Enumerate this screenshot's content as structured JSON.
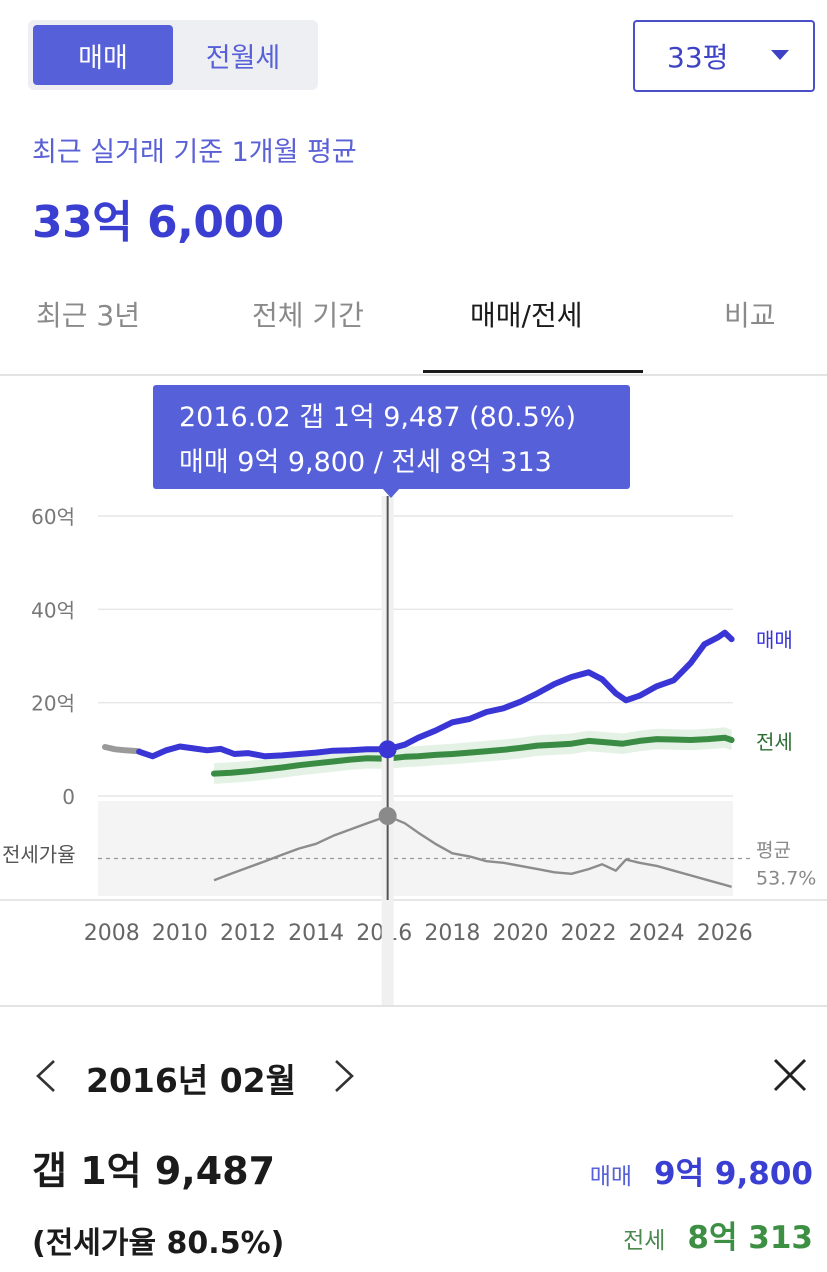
{
  "segment": {
    "sale_label": "매매",
    "rent_label": "전월세",
    "active": "sale"
  },
  "size_select": {
    "value": "33평"
  },
  "summary": {
    "subtitle": "최근 실거래 기준 1개월 평균",
    "price": "33억 6,000"
  },
  "tabs": [
    {
      "label": "최근 3년",
      "active": false
    },
    {
      "label": "전체 기간",
      "active": false
    },
    {
      "label": "매매/전세",
      "active": true
    },
    {
      "label": "비교",
      "active": false
    }
  ],
  "tooltip": {
    "line1": "2016.02  갭 1억 9,487 (80.5%)",
    "line2": "매매 9억 9,800 / 전세 8억 313"
  },
  "detail": {
    "date": "2016년 02월",
    "gap": "갭 1억 9,487",
    "ratio": "(전세가율 80.5%)",
    "sale_label": "매매",
    "sale_value": "9억 9,800",
    "jeonse_label": "전세",
    "jeonse_value": "8억 313"
  },
  "colors": {
    "sale": "#3a36d6",
    "jeonse": "#3a8c44",
    "ratio": "#8c8c8c",
    "accent": "#5660d9"
  },
  "icons": {
    "prev": "chevron-left-icon",
    "next": "chevron-right-icon",
    "close": "close-icon",
    "dropdown": "caret-down-icon"
  },
  "chart_data": {
    "type": "line",
    "x_ticks": [
      2008,
      2010,
      2012,
      2014,
      2016,
      2018,
      2020,
      2022,
      2024,
      2026
    ],
    "x_range": [
      2007.8,
      2026.3
    ],
    "y_ticks": [
      {
        "value": 0,
        "label": "0"
      },
      {
        "value": 20,
        "label": "20억"
      },
      {
        "value": 40,
        "label": "40억"
      },
      {
        "value": 60,
        "label": "60억"
      }
    ],
    "ylim": [
      0,
      60
    ],
    "grid": true,
    "highlight_year": 2016.1,
    "series": [
      {
        "name": "매매",
        "points": [
          [
            2008.8,
            9.5
          ],
          [
            2009.2,
            8.5
          ],
          [
            2009.6,
            9.8
          ],
          [
            2010.0,
            10.6
          ],
          [
            2010.4,
            10.2
          ],
          [
            2010.8,
            9.8
          ],
          [
            2011.2,
            10.1
          ],
          [
            2011.6,
            9.0
          ],
          [
            2012.0,
            9.2
          ],
          [
            2012.5,
            8.5
          ],
          [
            2013.0,
            8.7
          ],
          [
            2013.5,
            9.0
          ],
          [
            2014.0,
            9.3
          ],
          [
            2014.5,
            9.7
          ],
          [
            2015.0,
            9.8
          ],
          [
            2015.5,
            10.0
          ],
          [
            2016.1,
            10.0
          ],
          [
            2016.6,
            11.0
          ],
          [
            2017.0,
            12.5
          ],
          [
            2017.5,
            14.0
          ],
          [
            2018.0,
            15.8
          ],
          [
            2018.5,
            16.5
          ],
          [
            2019.0,
            18.0
          ],
          [
            2019.5,
            18.8
          ],
          [
            2020.0,
            20.2
          ],
          [
            2020.5,
            22.0
          ],
          [
            2021.0,
            24.0
          ],
          [
            2021.5,
            25.5
          ],
          [
            2022.0,
            26.5
          ],
          [
            2022.4,
            25.0
          ],
          [
            2022.8,
            22.0
          ],
          [
            2023.1,
            20.5
          ],
          [
            2023.5,
            21.5
          ],
          [
            2024.0,
            23.5
          ],
          [
            2024.5,
            24.8
          ],
          [
            2025.0,
            28.5
          ],
          [
            2025.4,
            32.5
          ],
          [
            2025.8,
            34.0
          ],
          [
            2026.0,
            35.0
          ],
          [
            2026.2,
            33.6
          ]
        ]
      },
      {
        "name": "전세",
        "points": [
          [
            2011.0,
            4.8
          ],
          [
            2011.5,
            5.0
          ],
          [
            2012.0,
            5.3
          ],
          [
            2012.5,
            5.7
          ],
          [
            2013.0,
            6.1
          ],
          [
            2013.5,
            6.6
          ],
          [
            2014.0,
            7.0
          ],
          [
            2014.5,
            7.4
          ],
          [
            2015.0,
            7.8
          ],
          [
            2015.5,
            8.1
          ],
          [
            2016.1,
            8.0
          ],
          [
            2016.6,
            8.4
          ],
          [
            2017.0,
            8.5
          ],
          [
            2017.5,
            8.8
          ],
          [
            2018.0,
            9.0
          ],
          [
            2018.5,
            9.3
          ],
          [
            2019.0,
            9.6
          ],
          [
            2019.5,
            9.9
          ],
          [
            2020.0,
            10.3
          ],
          [
            2020.5,
            10.8
          ],
          [
            2021.0,
            11.0
          ],
          [
            2021.5,
            11.2
          ],
          [
            2022.0,
            11.8
          ],
          [
            2022.5,
            11.5
          ],
          [
            2023.0,
            11.2
          ],
          [
            2023.5,
            11.8
          ],
          [
            2024.0,
            12.2
          ],
          [
            2024.5,
            12.1
          ],
          [
            2025.0,
            12.0
          ],
          [
            2025.5,
            12.2
          ],
          [
            2026.0,
            12.5
          ],
          [
            2026.2,
            12.0
          ]
        ]
      },
      {
        "name": "early",
        "points": [
          [
            2007.8,
            10.5
          ],
          [
            2008.1,
            10.0
          ],
          [
            2008.4,
            9.8
          ],
          [
            2008.8,
            9.6
          ]
        ]
      }
    ],
    "ratio_panel": {
      "label": "전세가율",
      "avg_label": "평균",
      "avg_value": "53.7%",
      "avg": 53.7,
      "range": [
        30,
        90
      ],
      "points": [
        [
          2011.0,
          40.0
        ],
        [
          2011.5,
          44.0
        ],
        [
          2012.0,
          48.0
        ],
        [
          2012.5,
          52.0
        ],
        [
          2013.0,
          56.0
        ],
        [
          2013.5,
          60.0
        ],
        [
          2014.0,
          63.0
        ],
        [
          2014.5,
          68.0
        ],
        [
          2015.0,
          72.0
        ],
        [
          2015.5,
          76.0
        ],
        [
          2016.1,
          80.5
        ],
        [
          2016.6,
          76.0
        ],
        [
          2017.0,
          70.0
        ],
        [
          2017.5,
          63.0
        ],
        [
          2018.0,
          57.0
        ],
        [
          2018.5,
          55.0
        ],
        [
          2019.0,
          52.0
        ],
        [
          2019.5,
          51.0
        ],
        [
          2020.0,
          49.0
        ],
        [
          2020.5,
          47.0
        ],
        [
          2021.0,
          45.0
        ],
        [
          2021.5,
          44.0
        ],
        [
          2022.0,
          47.0
        ],
        [
          2022.4,
          50.0
        ],
        [
          2022.8,
          46.0
        ],
        [
          2023.1,
          53.0
        ],
        [
          2023.5,
          51.0
        ],
        [
          2024.0,
          49.0
        ],
        [
          2024.5,
          46.0
        ],
        [
          2025.0,
          43.0
        ],
        [
          2025.5,
          40.0
        ],
        [
          2026.0,
          37.0
        ],
        [
          2026.2,
          35.8
        ]
      ]
    }
  }
}
